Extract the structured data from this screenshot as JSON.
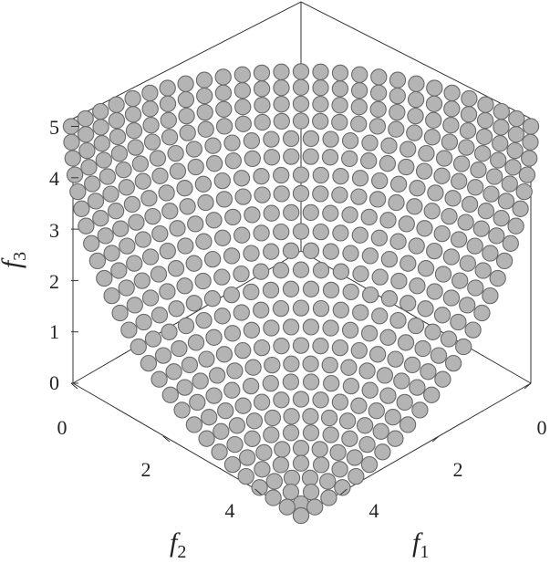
{
  "chart_data": {
    "type": "scatter",
    "title": "",
    "projection": "isometric-3d",
    "marker_color": "#b4b4b4",
    "marker_edge_color": "#6a6a6a",
    "surface": "concave-inverted-sphere",
    "f1_max": 5,
    "f2_max": 5,
    "f3_max": 5,
    "grid_resolution": 26,
    "axes": {
      "f1": {
        "label": "f",
        "sub": "1",
        "ticks": [
          "0",
          "2",
          "4"
        ],
        "tick_values": [
          0,
          2,
          4
        ],
        "range": [
          0,
          5
        ]
      },
      "f2": {
        "label": "f",
        "sub": "2",
        "ticks": [
          "0",
          "2",
          "4"
        ],
        "tick_values": [
          0,
          2,
          4
        ],
        "range": [
          0,
          5
        ]
      },
      "f3": {
        "label": "f",
        "sub": "3",
        "ticks": [
          "0",
          "1",
          "2",
          "3",
          "4",
          "5"
        ],
        "tick_values": [
          0,
          1,
          2,
          3,
          4,
          5
        ],
        "range": [
          0,
          5
        ]
      }
    }
  }
}
